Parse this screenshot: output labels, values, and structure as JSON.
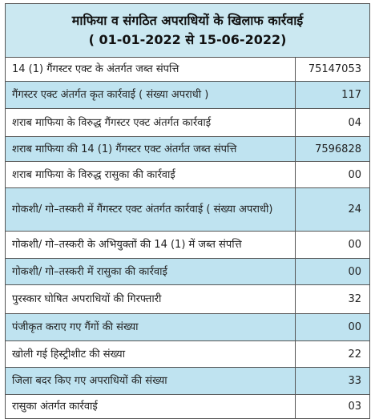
{
  "header": {
    "title": "माफिया व संगठित अपराधियों के खिलाफ कार्रवाई",
    "subtitle": "( 01-01-2022 से 15-06-2022)"
  },
  "table": {
    "rows": [
      [
        "14 (1) गैंगस्टर एक्ट के अंतर्गत जब्त संपत्ति",
        "75147053"
      ],
      [
        "गैंगस्टर एक्ट अंतर्गत कृत कार्रवाई ( संख्या अपराधी )",
        "117"
      ],
      [
        "शराब माफिया के विरुद्ध गैंगस्टर एक्ट अंतर्गत कार्रवाई",
        "04"
      ],
      [
        "शराब माफिया की 14 (1) गैंगस्टर एक्ट अंतर्गत जब्त संपत्ति",
        "7596828"
      ],
      [
        "शराब माफिया के विरुद्ध रासुका की कार्रवाई",
        "00"
      ],
      [
        "गोकशी/ गो–तस्करी में गैंगस्टर एक्ट अंतर्गत कार्रवाई ( संख्या अपराधी)",
        "24"
      ],
      [
        "गोकशी/ गो–तस्करी के अभियुक्तों की 14 (1) में जब्त संपत्ति",
        "00"
      ],
      [
        "गोकशी/ गो–तस्करी में रासुका की कार्रवाई",
        "00"
      ],
      [
        "पुरस्कार घोषित अपराधियों की गिरफ्तारी",
        "32"
      ],
      [
        "पंजीकृत कराए गए गैंगों की संख्या",
        "00"
      ],
      [
        "खोली गई हिस्ट्रीशीट की संख्या",
        "22"
      ],
      [
        "जिला बदर किए गए अपराधियों की संख्या",
        "33"
      ],
      [
        "रासुका अंतर्गत कार्रवाई",
        "03"
      ]
    ]
  }
}
